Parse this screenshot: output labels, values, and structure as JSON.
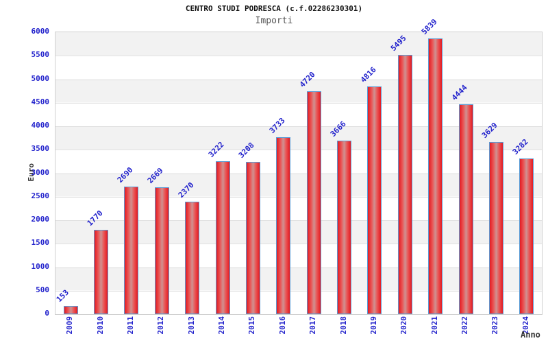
{
  "header": {
    "title": "CENTRO STUDI PODRESCA (c.f.02286230301)",
    "subtitle": "Importi"
  },
  "chart_data": {
    "type": "bar",
    "title": "CENTRO STUDI PODRESCA (c.f.02286230301)",
    "subtitle": "Importi",
    "xlabel": "Anno",
    "ylabel": "Euro",
    "categories": [
      "2009",
      "2010",
      "2011",
      "2012",
      "2013",
      "2014",
      "2015",
      "2016",
      "2017",
      "2018",
      "2019",
      "2020",
      "2021",
      "2022",
      "2023",
      "2024"
    ],
    "values": [
      153,
      1770,
      2690,
      2669,
      2370,
      3222,
      3208,
      3733,
      4720,
      3666,
      4816,
      5495,
      5839,
      4444,
      3629,
      3282
    ],
    "ylim": [
      0,
      6000
    ],
    "ytick_step": 500,
    "yticks": [
      "0",
      "500",
      "1000",
      "1500",
      "2000",
      "2500",
      "3000",
      "3500",
      "4000",
      "4500",
      "5000",
      "5500",
      "6000"
    ],
    "grid": true,
    "legend_position": "none",
    "bar_labels_rotation_deg": -45,
    "xtick_rotation_deg": 90
  },
  "colors": {
    "tick_label": "#2222cc",
    "bar_red": "#e31b22",
    "bar_center": "#cf9292",
    "bar_border": "#5b9bd5",
    "band_gray": "#f2f2f2",
    "grid_line": "#e0e0e0",
    "axis_label": "#333333",
    "subtitle": "#555555"
  }
}
